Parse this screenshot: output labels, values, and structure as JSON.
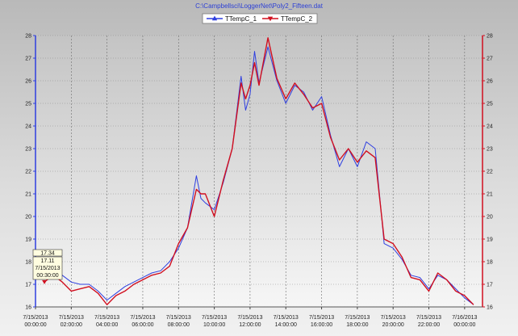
{
  "chart_data": {
    "type": "line",
    "title": "C:\\Campbellsci\\LoggerNet\\Poly2_Fifteen.dat",
    "ylim": [
      16,
      28
    ],
    "y_ticks": [
      16,
      17,
      18,
      19,
      20,
      21,
      22,
      23,
      24,
      25,
      26,
      27,
      28
    ],
    "x_ticks": [
      {
        "date": "7/15/2013",
        "time": "00:00:00",
        "hours": 0
      },
      {
        "date": "7/15/2013",
        "time": "02:00:00",
        "hours": 2
      },
      {
        "date": "7/15/2013",
        "time": "04:00:00",
        "hours": 4
      },
      {
        "date": "7/15/2013",
        "time": "06:00:00",
        "hours": 6
      },
      {
        "date": "7/15/2013",
        "time": "08:00:00",
        "hours": 8
      },
      {
        "date": "7/15/2013",
        "time": "10:00:00",
        "hours": 10
      },
      {
        "date": "7/15/2013",
        "time": "12:00:00",
        "hours": 12
      },
      {
        "date": "7/15/2013",
        "time": "14:00:00",
        "hours": 14
      },
      {
        "date": "7/15/2013",
        "time": "16:00:00",
        "hours": 16
      },
      {
        "date": "7/15/2013",
        "time": "18:00:00",
        "hours": 18
      },
      {
        "date": "7/15/2013",
        "time": "20:00:00",
        "hours": 20
      },
      {
        "date": "7/15/2013",
        "time": "22:00:00",
        "hours": 22
      },
      {
        "date": "7/16/2013",
        "time": "00:00:00",
        "hours": 24
      }
    ],
    "xlim_hours": [
      0,
      25
    ],
    "legend_position": "top-center",
    "grid": true,
    "series": [
      {
        "name": "TTempC_1",
        "color": "#2f3fe0",
        "points": [
          [
            0.5,
            17.34
          ],
          [
            1.0,
            17.9
          ],
          [
            1.5,
            17.4
          ],
          [
            2.0,
            17.1
          ],
          [
            2.5,
            17.0
          ],
          [
            3.0,
            17.0
          ],
          [
            3.5,
            16.7
          ],
          [
            4.0,
            16.3
          ],
          [
            4.5,
            16.6
          ],
          [
            5.0,
            16.9
          ],
          [
            5.5,
            17.1
          ],
          [
            6.0,
            17.3
          ],
          [
            6.5,
            17.5
          ],
          [
            7.0,
            17.6
          ],
          [
            7.5,
            18.0
          ],
          [
            8.0,
            18.6
          ],
          [
            8.5,
            19.5
          ],
          [
            9.0,
            21.8
          ],
          [
            9.25,
            20.8
          ],
          [
            9.5,
            20.6
          ],
          [
            10.0,
            20.3
          ],
          [
            10.5,
            21.5
          ],
          [
            11.0,
            23.0
          ],
          [
            11.5,
            26.2
          ],
          [
            11.75,
            24.7
          ],
          [
            12.0,
            25.4
          ],
          [
            12.25,
            27.3
          ],
          [
            12.5,
            25.9
          ],
          [
            13.0,
            27.5
          ],
          [
            13.5,
            26.0
          ],
          [
            14.0,
            25.0
          ],
          [
            14.5,
            25.8
          ],
          [
            15.0,
            25.5
          ],
          [
            15.5,
            24.7
          ],
          [
            16.0,
            25.3
          ],
          [
            16.5,
            23.6
          ],
          [
            17.0,
            22.2
          ],
          [
            17.5,
            23.0
          ],
          [
            18.0,
            22.2
          ],
          [
            18.5,
            23.3
          ],
          [
            19.0,
            23.0
          ],
          [
            19.5,
            18.8
          ],
          [
            20.0,
            18.6
          ],
          [
            20.5,
            18.1
          ],
          [
            21.0,
            17.4
          ],
          [
            21.5,
            17.3
          ],
          [
            22.0,
            16.8
          ],
          [
            22.5,
            17.4
          ],
          [
            23.0,
            17.2
          ],
          [
            23.5,
            16.8
          ],
          [
            24.0,
            16.4
          ],
          [
            24.5,
            16.1
          ]
        ]
      },
      {
        "name": "TTempC_2",
        "color": "#d10f1f",
        "points": [
          [
            0.5,
            17.11
          ],
          [
            1.0,
            17.4
          ],
          [
            1.5,
            17.1
          ],
          [
            2.0,
            16.7
          ],
          [
            2.5,
            16.8
          ],
          [
            3.0,
            16.9
          ],
          [
            3.5,
            16.6
          ],
          [
            4.0,
            16.1
          ],
          [
            4.5,
            16.5
          ],
          [
            5.0,
            16.7
          ],
          [
            5.5,
            17.0
          ],
          [
            6.0,
            17.2
          ],
          [
            6.5,
            17.4
          ],
          [
            7.0,
            17.5
          ],
          [
            7.5,
            17.8
          ],
          [
            8.0,
            18.8
          ],
          [
            8.5,
            19.5
          ],
          [
            9.0,
            21.2
          ],
          [
            9.25,
            21.0
          ],
          [
            9.5,
            21.0
          ],
          [
            10.0,
            20.0
          ],
          [
            10.5,
            21.6
          ],
          [
            11.0,
            23.0
          ],
          [
            11.5,
            25.9
          ],
          [
            11.75,
            25.2
          ],
          [
            12.0,
            25.8
          ],
          [
            12.25,
            26.8
          ],
          [
            12.5,
            25.8
          ],
          [
            13.0,
            27.9
          ],
          [
            13.5,
            26.1
          ],
          [
            14.0,
            25.2
          ],
          [
            14.5,
            25.9
          ],
          [
            15.0,
            25.4
          ],
          [
            15.5,
            24.8
          ],
          [
            16.0,
            25.0
          ],
          [
            16.5,
            23.5
          ],
          [
            17.0,
            22.5
          ],
          [
            17.5,
            23.0
          ],
          [
            18.0,
            22.4
          ],
          [
            18.5,
            22.9
          ],
          [
            19.0,
            22.6
          ],
          [
            19.5,
            19.0
          ],
          [
            20.0,
            18.8
          ],
          [
            20.5,
            18.2
          ],
          [
            21.0,
            17.3
          ],
          [
            21.5,
            17.2
          ],
          [
            22.0,
            16.7
          ],
          [
            22.5,
            17.5
          ],
          [
            23.0,
            17.2
          ],
          [
            23.5,
            16.7
          ],
          [
            24.0,
            16.5
          ],
          [
            24.5,
            16.1
          ]
        ]
      }
    ],
    "cursor": {
      "hours": 0.5,
      "value_1": "17.34",
      "value_2": "17.11",
      "date": "7/15/2013",
      "time": "00:30:00"
    }
  }
}
